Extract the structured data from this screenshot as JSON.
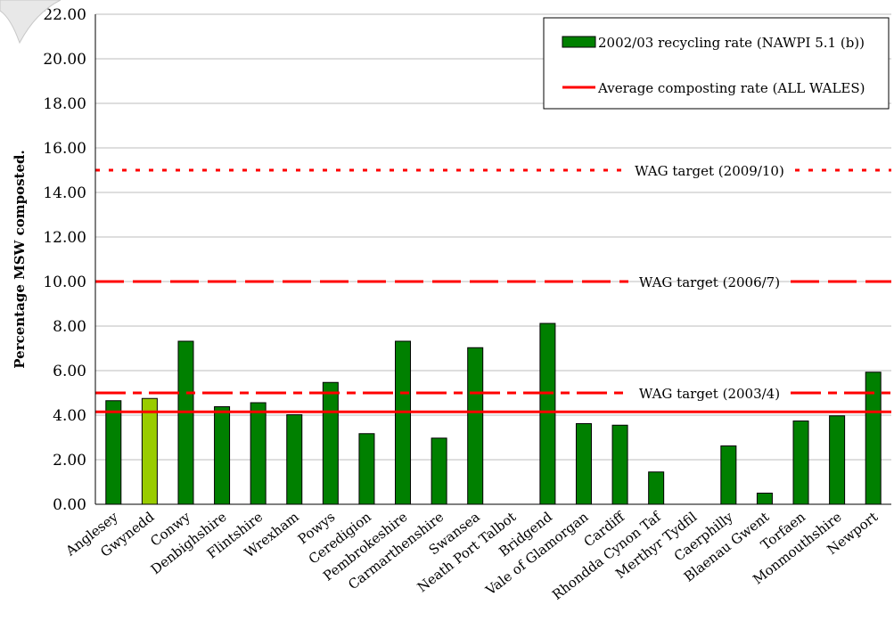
{
  "chart_data": {
    "type": "bar",
    "ylabel": "Percentage MSW composted.",
    "xlabel": "",
    "ylim": [
      0,
      22
    ],
    "ytick_step": 2,
    "grid": "horizontal",
    "yticks": [
      "0.00",
      "2.00",
      "4.00",
      "6.00",
      "8.00",
      "10.00",
      "12.00",
      "14.00",
      "16.00",
      "18.00",
      "20.00",
      "22.00"
    ],
    "categories": [
      "Anglesey",
      "Gwynedd",
      "Conwy",
      "Denbighshire",
      "Flintshire",
      "Wrexham",
      "Powys",
      "Ceredigion",
      "Pembrokeshire",
      "Carmarthenshire",
      "Swansea",
      "Neath Port Talbot",
      "Bridgend",
      "Vale of Glamorgan",
      "Cardiff",
      "Rhondda Cynon Taf",
      "Merthyr Tydfil",
      "Caerphilly",
      "Blaenau Gwent",
      "Torfaen",
      "Monmouthshire",
      "Newport"
    ],
    "series": [
      {
        "name": "2002/03 recycling rate (NAWPI 5.1 (b))",
        "values": [
          4.65,
          4.75,
          7.32,
          4.38,
          4.56,
          4.02,
          5.47,
          3.17,
          7.32,
          2.97,
          7.03,
          0,
          8.12,
          3.62,
          3.55,
          1.45,
          0,
          2.62,
          0.5,
          3.74,
          3.97,
          5.93
        ],
        "color": "#008000",
        "highlight_index": 1,
        "highlight_color": "#99cc00"
      }
    ],
    "reference_lines": [
      {
        "name": "Average composting rate (ALL WALES)",
        "value": 4.15,
        "style": "solid",
        "color": "#ff0000"
      },
      {
        "name": "WAG target (2003/4)",
        "value": 5.0,
        "style": "dashdot",
        "color": "#ff0000"
      },
      {
        "name": "WAG target (2006/7)",
        "value": 10.0,
        "style": "dashed",
        "color": "#ff0000"
      },
      {
        "name": "WAG target (2009/10)",
        "value": 15.0,
        "style": "dotted",
        "color": "#ff0000"
      }
    ],
    "legend": {
      "placement": "top-right",
      "entries": [
        "2002/03 recycling rate (NAWPI 5.1 (b))",
        "Average composting rate (ALL WALES)"
      ]
    }
  }
}
